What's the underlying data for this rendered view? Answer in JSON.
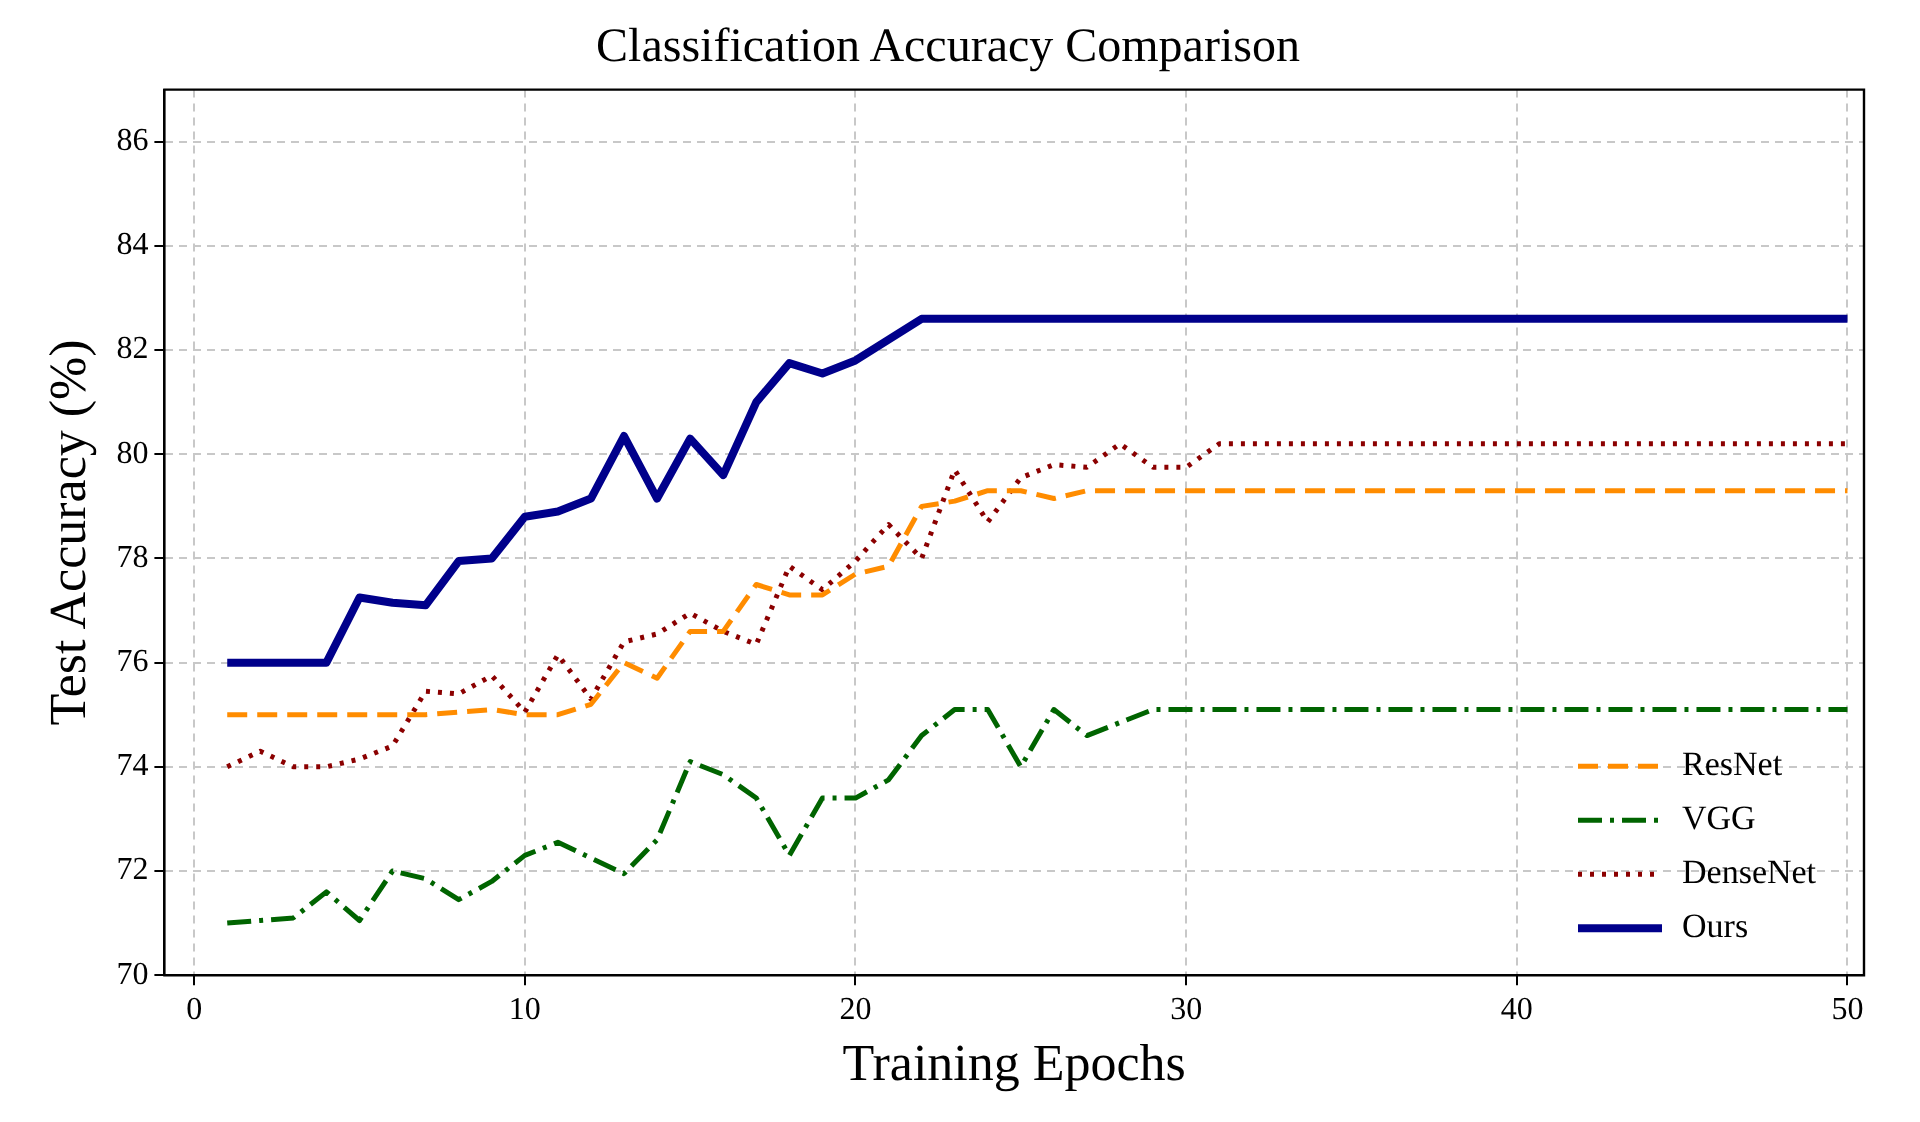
{
  "chart_data": {
    "type": "line",
    "title": "Classification Accuracy Comparison",
    "xlabel": "Training Epochs",
    "ylabel": "Test Accuracy (%)",
    "x": [
      1,
      2,
      3,
      4,
      5,
      6,
      7,
      8,
      9,
      10,
      11,
      12,
      13,
      14,
      15,
      16,
      17,
      18,
      19,
      20,
      21,
      22,
      23,
      24,
      25,
      26,
      27,
      28,
      29,
      30,
      31,
      32,
      33,
      34,
      35,
      36,
      37,
      38,
      39,
      40,
      41,
      42,
      43,
      44,
      45,
      46,
      47,
      48,
      49,
      50
    ],
    "series": [
      {
        "name": "ResNet",
        "color": "#ff8c00",
        "line_style": "dashed",
        "values": [
          75.0,
          75.0,
          75.0,
          75.0,
          75.0,
          75.0,
          75.0,
          75.05,
          75.1,
          75.0,
          75.0,
          75.2,
          76.0,
          75.7,
          76.6,
          76.6,
          77.5,
          77.3,
          77.3,
          77.7,
          77.85,
          79.0,
          79.1,
          79.3,
          79.3,
          79.15,
          79.3,
          79.3,
          79.3,
          79.3,
          79.3,
          79.3,
          79.3,
          79.3,
          79.3,
          79.3,
          79.3,
          79.3,
          79.3,
          79.3,
          79.3,
          79.3,
          79.3,
          79.3,
          79.3,
          79.3,
          79.3,
          79.3,
          79.3,
          79.3
        ]
      },
      {
        "name": "VGG",
        "color": "#006400",
        "line_style": "dashdot",
        "values": [
          71.0,
          71.05,
          71.1,
          71.6,
          71.05,
          72.0,
          71.85,
          71.45,
          71.8,
          72.3,
          72.55,
          72.25,
          71.95,
          72.6,
          74.1,
          73.85,
          73.4,
          72.3,
          73.4,
          73.4,
          73.75,
          74.6,
          75.1,
          75.1,
          74.0,
          75.1,
          74.6,
          74.85,
          75.1,
          75.1,
          75.1,
          75.1,
          75.1,
          75.1,
          75.1,
          75.1,
          75.1,
          75.1,
          75.1,
          75.1,
          75.1,
          75.1,
          75.1,
          75.1,
          75.1,
          75.1,
          75.1,
          75.1,
          75.1,
          75.1
        ]
      },
      {
        "name": "DenseNet",
        "color": "#8b0000",
        "line_style": "dotted",
        "values": [
          74.0,
          74.3,
          74.0,
          74.0,
          74.15,
          74.4,
          75.45,
          75.4,
          75.75,
          75.05,
          76.15,
          75.3,
          76.4,
          76.55,
          76.95,
          76.6,
          76.35,
          77.85,
          77.4,
          77.95,
          78.65,
          78.0,
          79.7,
          78.7,
          79.55,
          79.8,
          79.75,
          80.2,
          79.75,
          79.75,
          80.2,
          80.2,
          80.2,
          80.2,
          80.2,
          80.2,
          80.2,
          80.2,
          80.2,
          80.2,
          80.2,
          80.2,
          80.2,
          80.2,
          80.2,
          80.2,
          80.2,
          80.2,
          80.2,
          80.2
        ]
      },
      {
        "name": "Ours",
        "color": "#00008b",
        "line_style": "solid",
        "values": [
          76.0,
          76.0,
          76.0,
          76.0,
          77.25,
          77.15,
          77.1,
          77.95,
          78.0,
          78.8,
          78.9,
          79.15,
          80.35,
          79.15,
          80.3,
          79.6,
          81.0,
          81.75,
          81.55,
          81.8,
          82.2,
          82.6,
          82.6,
          82.6,
          82.6,
          82.6,
          82.6,
          82.6,
          82.6,
          82.6,
          82.6,
          82.6,
          82.6,
          82.6,
          82.6,
          82.6,
          82.6,
          82.6,
          82.6,
          82.6,
          82.6,
          82.6,
          82.6,
          82.6,
          82.6,
          82.6,
          82.6,
          82.6,
          82.6,
          82.6
        ]
      }
    ],
    "xlim": [
      -0.9,
      50.5
    ],
    "xticks": [
      0,
      10,
      20,
      30,
      40,
      50
    ],
    "ylim": [
      70,
      87
    ],
    "yticks": [
      70,
      72,
      74,
      76,
      78,
      80,
      82,
      84,
      86
    ],
    "grid": true,
    "legend": "bottom right",
    "marker": "none"
  }
}
